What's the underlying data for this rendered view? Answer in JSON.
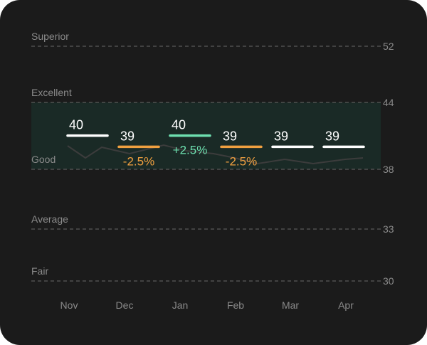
{
  "chart_data": {
    "type": "line",
    "title": "",
    "xlabel": "",
    "ylabel": "",
    "categories": [
      "Nov",
      "Dec",
      "Jan",
      "Feb",
      "Mar",
      "Apr"
    ],
    "values": [
      40,
      39,
      40,
      39,
      39,
      39
    ],
    "change_labels": [
      "",
      "-2.5%",
      "+2.5%",
      "-2.5%",
      "",
      ""
    ],
    "change_direction": [
      "neutral",
      "down",
      "up",
      "down",
      "neutral",
      "neutral"
    ],
    "bands": [
      {
        "name": "Superior",
        "value": 52
      },
      {
        "name": "Excellent",
        "value": 44
      },
      {
        "name": "Good",
        "value": 38
      },
      {
        "name": "Average",
        "value": 33
      },
      {
        "name": "Fair",
        "value": 30
      }
    ],
    "highlight_range": [
      38,
      44
    ],
    "ylim": [
      30,
      52
    ],
    "grid": true,
    "colors": {
      "background": "#1b1b1b",
      "neutral": "#ffffff",
      "down": "#f0a040",
      "up": "#6ee0b0",
      "band": "#1a2a26",
      "grid": "#5a5a5a",
      "muted_text": "#8a8a8a",
      "trend": "#3c3c3c"
    }
  }
}
